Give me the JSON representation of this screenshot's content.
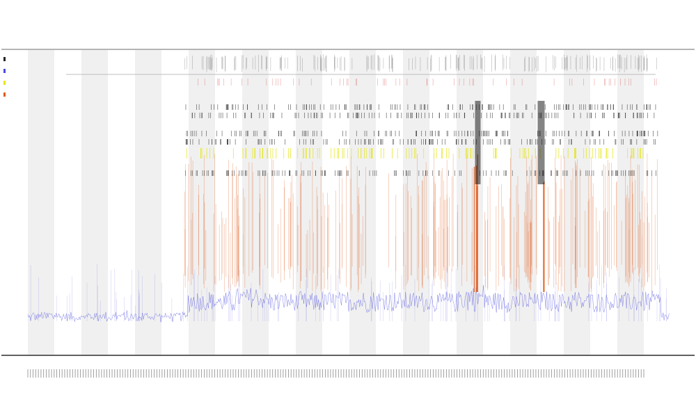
{
  "chart_data": {
    "type": "area",
    "title": "",
    "subtitle_lines": [
      "",
      ""
    ],
    "xlabel": "",
    "ylabel": "",
    "legend_placement": "top-left",
    "grid": false,
    "background_bands": "alternating",
    "x_categories_count": 235,
    "ylim": [
      0,
      1
    ],
    "series": [
      {
        "name": "",
        "color": "#4a4ae0",
        "style": "line-baseline",
        "values": []
      },
      {
        "name": "",
        "color": "#e05a1a",
        "style": "spikes",
        "values": []
      },
      {
        "name": "",
        "color": "#e6e61a",
        "style": "ticks",
        "values": []
      },
      {
        "name": "",
        "color": "#222222",
        "style": "ticks",
        "values": []
      }
    ],
    "annotation_rows": 3
  },
  "colors": {
    "band": "#f0f0f0",
    "axis": "#000000",
    "blue": "#4a4ae0",
    "orange": "#e05a1a",
    "yellow": "#e6e61a",
    "dark": "#222222",
    "red": "#d02020"
  }
}
